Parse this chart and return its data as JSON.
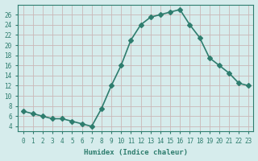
{
  "x": [
    0,
    1,
    2,
    3,
    4,
    5,
    6,
    7,
    8,
    9,
    10,
    11,
    12,
    13,
    14,
    15,
    16,
    17,
    18,
    19,
    20,
    21,
    22,
    23
  ],
  "y": [
    7.0,
    6.5,
    6.0,
    5.5,
    5.5,
    5.0,
    4.5,
    4.0,
    7.5,
    12.0,
    16.0,
    21.0,
    24.0,
    25.5,
    26.0,
    26.5,
    27.0,
    24.0,
    21.5,
    17.5,
    16.0,
    14.5,
    12.5,
    12.0
  ],
  "xlabel": "Humidex (Indice chaleur)",
  "line_color": "#2e7d6e",
  "marker": "D",
  "marker_size": 3,
  "bg_color": "#d6ecec",
  "grid_color_major": "#c9b8b8",
  "grid_color_minor": "#ddd0d0",
  "xlim": [
    -0.5,
    23.5
  ],
  "ylim": [
    3,
    28
  ],
  "xticks": [
    0,
    1,
    2,
    3,
    4,
    5,
    6,
    7,
    8,
    9,
    10,
    11,
    12,
    13,
    14,
    15,
    16,
    17,
    18,
    19,
    20,
    21,
    22,
    23
  ],
  "yticks": [
    4,
    6,
    8,
    10,
    12,
    14,
    16,
    18,
    20,
    22,
    24,
    26
  ],
  "tick_color": "#2e7d6e",
  "label_color": "#2e7d6e"
}
